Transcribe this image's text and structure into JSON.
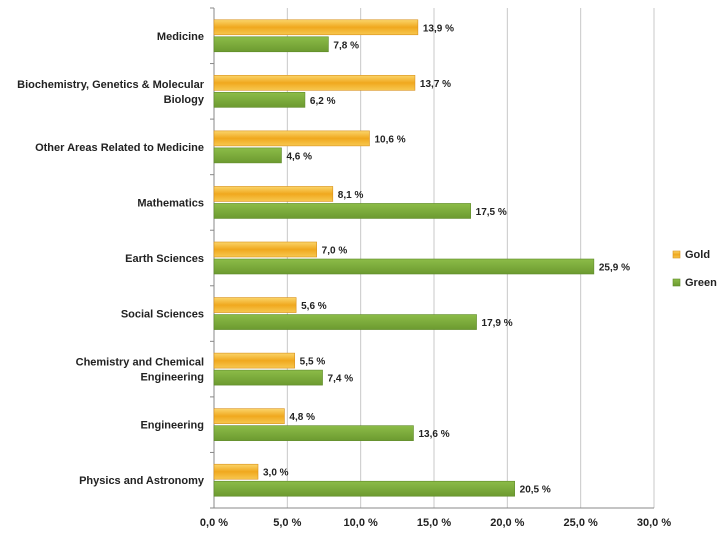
{
  "chart_data": {
    "type": "bar",
    "orientation": "horizontal",
    "categories": [
      [
        "Medicine"
      ],
      [
        "Biochemistry, Genetics & Molecular",
        "Biology"
      ],
      [
        "Other Areas Related to Medicine"
      ],
      [
        "Mathematics"
      ],
      [
        "Earth Sciences"
      ],
      [
        "Social Sciences"
      ],
      [
        "Chemistry and Chemical",
        "Engineering"
      ],
      [
        "Engineering"
      ],
      [
        "Physics and Astronomy"
      ]
    ],
    "series": [
      {
        "name": "Gold",
        "color": "#f2b233",
        "values": [
          13.9,
          13.7,
          10.6,
          8.1,
          7.0,
          5.6,
          5.5,
          4.8,
          3.0
        ],
        "labels": [
          "13,9 %",
          "13,7 %",
          "10,6 %",
          "8,1 %",
          "7,0 %",
          "5,6 %",
          "5,5 %",
          "4,8 %",
          "3,0 %"
        ]
      },
      {
        "name": "Green",
        "color": "#7aa83a",
        "values": [
          7.8,
          6.2,
          4.6,
          17.5,
          25.9,
          17.9,
          7.4,
          13.6,
          20.5
        ],
        "labels": [
          "7,8 %",
          "6,2 %",
          "4,6 %",
          "17,5 %",
          "25,9 %",
          "17,9 %",
          "7,4 %",
          "13,6 %",
          "20,5 %"
        ]
      }
    ],
    "xlim": [
      0,
      30
    ],
    "xticks": [
      0,
      5,
      10,
      15,
      20,
      25,
      30
    ],
    "xtick_labels": [
      "0,0 %",
      "5,0 %",
      "10,0 %",
      "15,0 %",
      "20,0 %",
      "25,0 %",
      "30,0 %"
    ],
    "grid": true,
    "legend": "right"
  }
}
